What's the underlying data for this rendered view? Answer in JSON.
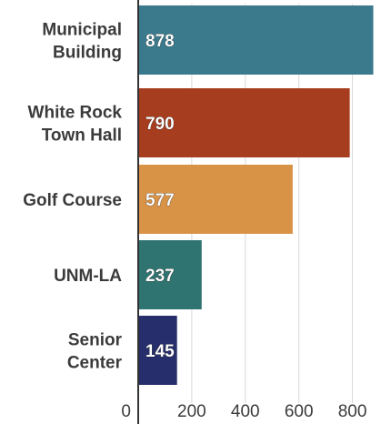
{
  "chart_data": {
    "type": "bar",
    "orientation": "horizontal",
    "categories": [
      [
        "Municipal",
        "Building"
      ],
      [
        "White Rock",
        "Town Hall"
      ],
      [
        "Golf Course"
      ],
      [
        "UNM-LA"
      ],
      [
        "Senior",
        "Center"
      ]
    ],
    "values": [
      878,
      790,
      577,
      237,
      145
    ],
    "value_labels": [
      "878",
      "790",
      "577",
      "237",
      "145"
    ],
    "colors": [
      "#3a7a8c",
      "#a63d1f",
      "#d99346",
      "#2f7470",
      "#262f6b"
    ],
    "xlim": [
      0,
      900
    ],
    "x_ticks": [
      0,
      200,
      400,
      600,
      800
    ],
    "x_tick_labels": [
      "0",
      "200",
      "400",
      "600",
      "800"
    ],
    "grid": true,
    "legend": "none"
  }
}
